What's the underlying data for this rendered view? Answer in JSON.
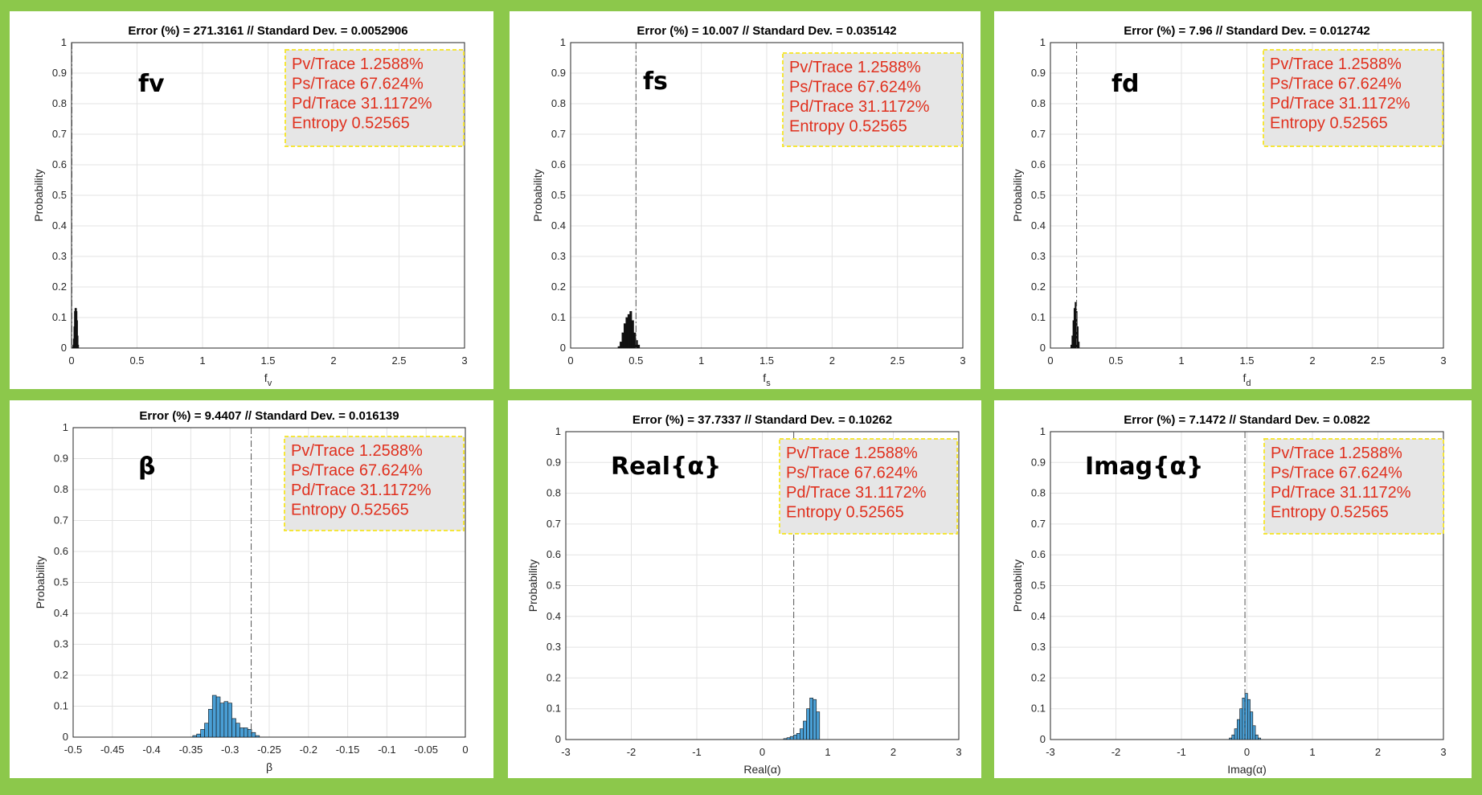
{
  "background_color": "#8cc84b",
  "legend_style": {
    "fill": "#e6e6e6",
    "border": "#f5e63a",
    "text_color": "#e0301e"
  },
  "chart_data": [
    {
      "type": "bar",
      "title": "Error (%) = 271.3161 // Standard Dev. = 0.0052906",
      "label": "fv",
      "xlabel": "f_v",
      "ylabel": "Probability",
      "xlim": [
        0,
        3
      ],
      "ylim": [
        0,
        1
      ],
      "xticks": [
        "0",
        "0.5",
        "1",
        "1.5",
        "2",
        "2.5",
        "3"
      ],
      "yticks": [
        "0",
        "0.1",
        "0.2",
        "0.3",
        "0.4",
        "0.5",
        "0.6",
        "0.7",
        "0.8",
        "0.9",
        "1"
      ],
      "bar_color": "#111111",
      "reference_line": 0.003,
      "legend": [
        "Pv/Trace 1.2588%",
        "Ps/Trace 67.624%",
        "Pd/Trace 31.1172%",
        "Entropy 0.52565"
      ],
      "bins": [
        [
          0.01,
          0.003
        ],
        [
          0.014,
          0.01
        ],
        [
          0.018,
          0.03
        ],
        [
          0.022,
          0.07
        ],
        [
          0.026,
          0.12
        ],
        [
          0.03,
          0.13
        ],
        [
          0.034,
          0.13
        ],
        [
          0.038,
          0.12
        ],
        [
          0.042,
          0.09
        ],
        [
          0.046,
          0.04
        ],
        [
          0.05,
          0.01
        ]
      ]
    },
    {
      "type": "bar",
      "title": "Error (%) = 10.007 // Standard Dev. = 0.035142",
      "label": "fs",
      "xlabel": "f_s",
      "ylabel": "Probability",
      "xlim": [
        0,
        3
      ],
      "ylim": [
        0,
        1
      ],
      "xticks": [
        "0",
        "0.5",
        "1",
        "1.5",
        "2",
        "2.5",
        "3"
      ],
      "yticks": [
        "0",
        "0.1",
        "0.2",
        "0.3",
        "0.4",
        "0.5",
        "0.6",
        "0.7",
        "0.8",
        "0.9",
        "1"
      ],
      "bar_color": "#111111",
      "reference_line": 0.5,
      "legend": [
        "Pv/Trace 1.2588%",
        "Ps/Trace 67.624%",
        "Pd/Trace 31.1172%",
        "Entropy 0.52565"
      ],
      "bins": [
        [
          0.37,
          0.005
        ],
        [
          0.385,
          0.02
        ],
        [
          0.4,
          0.05
        ],
        [
          0.415,
          0.08
        ],
        [
          0.43,
          0.1
        ],
        [
          0.445,
          0.11
        ],
        [
          0.46,
          0.12
        ],
        [
          0.475,
          0.09
        ],
        [
          0.49,
          0.05
        ],
        [
          0.505,
          0.025
        ],
        [
          0.52,
          0.01
        ]
      ]
    },
    {
      "type": "bar",
      "title": "Error (%) = 7.96 // Standard Dev. = 0.012742",
      "label": "fd",
      "xlabel": "f_d",
      "ylabel": "Probability",
      "xlim": [
        0,
        3
      ],
      "ylim": [
        0,
        1
      ],
      "xticks": [
        "0",
        "0.5",
        "1",
        "1.5",
        "2",
        "2.5",
        "3"
      ],
      "yticks": [
        "0",
        "0.1",
        "0.2",
        "0.3",
        "0.4",
        "0.5",
        "0.6",
        "0.7",
        "0.8",
        "0.9",
        "1"
      ],
      "bar_color": "#111111",
      "reference_line": 0.2,
      "legend": [
        "Pv/Trace 1.2588%",
        "Ps/Trace 67.624%",
        "Pd/Trace 31.1172%",
        "Entropy 0.52565"
      ],
      "bins": [
        [
          0.16,
          0.01
        ],
        [
          0.168,
          0.04
        ],
        [
          0.176,
          0.09
        ],
        [
          0.184,
          0.13
        ],
        [
          0.192,
          0.15
        ],
        [
          0.2,
          0.12
        ],
        [
          0.208,
          0.07
        ],
        [
          0.216,
          0.02
        ]
      ]
    },
    {
      "type": "bar",
      "title": "Error (%) = 9.4407 // Standard Dev. = 0.016139",
      "label": "β",
      "xlabel": "β",
      "ylabel": "Probability",
      "xlim": [
        -0.5,
        0
      ],
      "ylim": [
        0,
        1
      ],
      "xticks": [
        "-0.5",
        "-0.45",
        "-0.4",
        "-0.35",
        "-0.3",
        "-0.25",
        "-0.2",
        "-0.15",
        "-0.1",
        "-0.05",
        "0"
      ],
      "yticks": [
        "0",
        "0.1",
        "0.2",
        "0.3",
        "0.4",
        "0.5",
        "0.6",
        "0.7",
        "0.8",
        "0.9",
        "1"
      ],
      "bar_color": "#4a9fd5",
      "reference_line": -0.273,
      "legend": [
        "Pv/Trace 1.2588%",
        "Ps/Trace 67.624%",
        "Pd/Trace 31.1172%",
        "Entropy 0.52565"
      ],
      "bins": [
        [
          -0.345,
          0.005
        ],
        [
          -0.34,
          0.01
        ],
        [
          -0.335,
          0.025
        ],
        [
          -0.33,
          0.045
        ],
        [
          -0.325,
          0.09
        ],
        [
          -0.32,
          0.135
        ],
        [
          -0.315,
          0.13
        ],
        [
          -0.31,
          0.11
        ],
        [
          -0.305,
          0.115
        ],
        [
          -0.3,
          0.11
        ],
        [
          -0.295,
          0.06
        ],
        [
          -0.29,
          0.045
        ],
        [
          -0.285,
          0.03
        ],
        [
          -0.28,
          0.03
        ],
        [
          -0.275,
          0.025
        ],
        [
          -0.27,
          0.015
        ],
        [
          -0.265,
          0.005
        ]
      ]
    },
    {
      "type": "bar",
      "title": "Error (%) = 37.7337 // Standard Dev. = 0.10262",
      "label": "Real{α}",
      "xlabel": "Real(α)",
      "ylabel": "Probability",
      "xlim": [
        -3,
        3
      ],
      "ylim": [
        0,
        1
      ],
      "xticks": [
        "-3",
        "-2",
        "-1",
        "0",
        "1",
        "2",
        "3"
      ],
      "yticks": [
        "0",
        "0.1",
        "0.2",
        "0.3",
        "0.4",
        "0.5",
        "0.6",
        "0.7",
        "0.8",
        "0.9",
        "1"
      ],
      "bar_color": "#4a9fd5",
      "reference_line": 0.48,
      "legend": [
        "Pv/Trace 1.2588%",
        "Ps/Trace 67.624%",
        "Pd/Trace 31.1172%",
        "Entropy 0.52565"
      ],
      "bins": [
        [
          0.35,
          0.003
        ],
        [
          0.4,
          0.006
        ],
        [
          0.45,
          0.01
        ],
        [
          0.5,
          0.015
        ],
        [
          0.55,
          0.02
        ],
        [
          0.6,
          0.035
        ],
        [
          0.65,
          0.06
        ],
        [
          0.7,
          0.1
        ],
        [
          0.75,
          0.135
        ],
        [
          0.8,
          0.13
        ],
        [
          0.85,
          0.09
        ]
      ]
    },
    {
      "type": "bar",
      "title": "Error (%) = 7.1472 // Standard Dev. = 0.0822",
      "label": "Imag{α}",
      "xlabel": "Imag(α)",
      "ylabel": "Probability",
      "xlim": [
        -3,
        3
      ],
      "ylim": [
        0,
        1
      ],
      "xticks": [
        "-3",
        "-2",
        "-1",
        "0",
        "1",
        "2",
        "3"
      ],
      "yticks": [
        "0",
        "0.1",
        "0.2",
        "0.3",
        "0.4",
        "0.5",
        "0.6",
        "0.7",
        "0.8",
        "0.9",
        "1"
      ],
      "bar_color": "#4a9fd5",
      "reference_line": -0.03,
      "legend": [
        "Pv/Trace 1.2588%",
        "Ps/Trace 67.624%",
        "Pd/Trace 31.1172%",
        "Entropy 0.52565"
      ],
      "bins": [
        [
          -0.25,
          0.005
        ],
        [
          -0.21,
          0.015
        ],
        [
          -0.17,
          0.035
        ],
        [
          -0.13,
          0.065
        ],
        [
          -0.09,
          0.1
        ],
        [
          -0.05,
          0.135
        ],
        [
          -0.01,
          0.15
        ],
        [
          0.03,
          0.13
        ],
        [
          0.07,
          0.09
        ],
        [
          0.11,
          0.045
        ],
        [
          0.15,
          0.015
        ],
        [
          0.19,
          0.005
        ]
      ]
    }
  ]
}
